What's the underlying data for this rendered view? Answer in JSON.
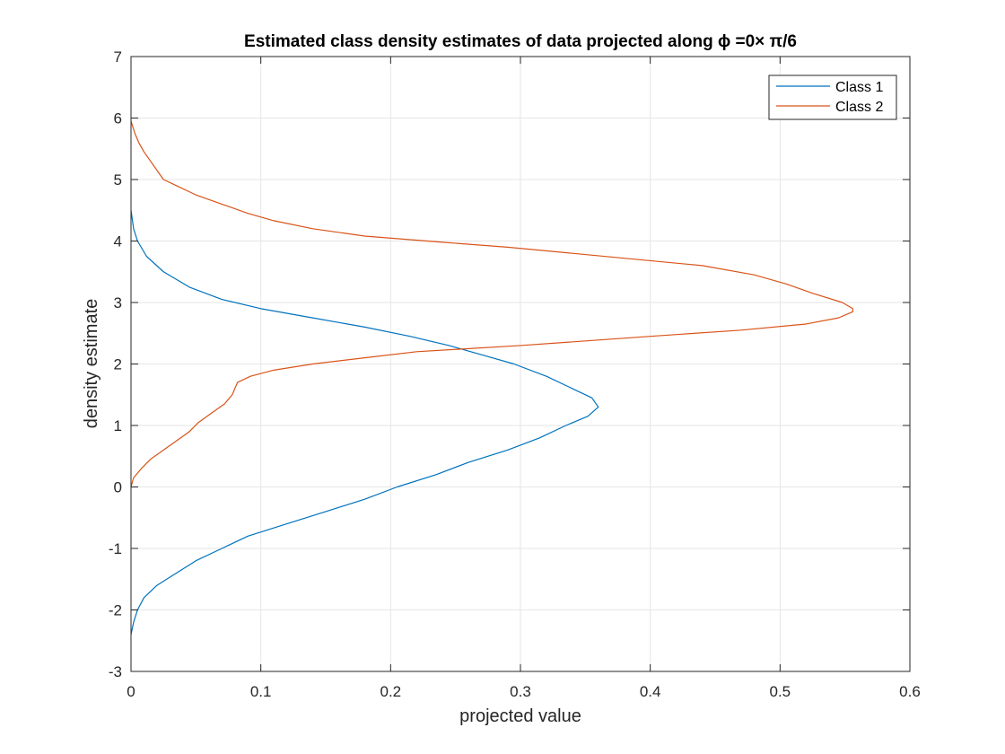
{
  "chart_data": {
    "type": "line",
    "title": "Estimated class density estimates of data projected along ϕ =0× π/6",
    "xlabel": "projected value",
    "ylabel": "density estimate",
    "xlim": [
      0,
      0.6
    ],
    "ylim": [
      -3,
      7
    ],
    "xticks": [
      0,
      0.1,
      0.2,
      0.3,
      0.4,
      0.5,
      0.6
    ],
    "xtick_labels": [
      "0",
      "0.1",
      "0.2",
      "0.3",
      "0.4",
      "0.5",
      "0.6"
    ],
    "yticks": [
      -3,
      -2,
      -1,
      0,
      1,
      2,
      3,
      4,
      5,
      6,
      7
    ],
    "ytick_labels": [
      "-3",
      "-2",
      "-1",
      "0",
      "1",
      "2",
      "3",
      "4",
      "5",
      "6",
      "7"
    ],
    "grid": true,
    "legend_position": "top-right",
    "series": [
      {
        "name": "Class 1",
        "color": "#0072BD",
        "points": [
          [
            0.0,
            -2.4
          ],
          [
            0.002,
            -2.2
          ],
          [
            0.005,
            -2.0
          ],
          [
            0.01,
            -1.8
          ],
          [
            0.02,
            -1.6
          ],
          [
            0.035,
            -1.4
          ],
          [
            0.05,
            -1.2
          ],
          [
            0.07,
            -1.0
          ],
          [
            0.09,
            -0.8
          ],
          [
            0.12,
            -0.6
          ],
          [
            0.15,
            -0.4
          ],
          [
            0.18,
            -0.2
          ],
          [
            0.205,
            0.0
          ],
          [
            0.235,
            0.2
          ],
          [
            0.26,
            0.4
          ],
          [
            0.29,
            0.6
          ],
          [
            0.315,
            0.8
          ],
          [
            0.335,
            1.0
          ],
          [
            0.352,
            1.15
          ],
          [
            0.36,
            1.3
          ],
          [
            0.355,
            1.45
          ],
          [
            0.34,
            1.6
          ],
          [
            0.32,
            1.8
          ],
          [
            0.295,
            2.0
          ],
          [
            0.27,
            2.15
          ],
          [
            0.245,
            2.3
          ],
          [
            0.215,
            2.45
          ],
          [
            0.18,
            2.6
          ],
          [
            0.14,
            2.75
          ],
          [
            0.1,
            2.9
          ],
          [
            0.07,
            3.05
          ],
          [
            0.045,
            3.25
          ],
          [
            0.025,
            3.5
          ],
          [
            0.012,
            3.75
          ],
          [
            0.005,
            4.0
          ],
          [
            0.002,
            4.2
          ],
          [
            0.0,
            4.5
          ]
        ]
      },
      {
        "name": "Class 2",
        "color": "#D95319",
        "points": [
          [
            0.0,
            0.0
          ],
          [
            0.002,
            0.15
          ],
          [
            0.008,
            0.3
          ],
          [
            0.015,
            0.45
          ],
          [
            0.025,
            0.6
          ],
          [
            0.035,
            0.75
          ],
          [
            0.045,
            0.9
          ],
          [
            0.052,
            1.05
          ],
          [
            0.062,
            1.2
          ],
          [
            0.072,
            1.35
          ],
          [
            0.078,
            1.5
          ],
          [
            0.08,
            1.6
          ],
          [
            0.082,
            1.7
          ],
          [
            0.092,
            1.8
          ],
          [
            0.11,
            1.9
          ],
          [
            0.14,
            2.0
          ],
          [
            0.18,
            2.1
          ],
          [
            0.22,
            2.2
          ],
          [
            0.3,
            2.3
          ],
          [
            0.4,
            2.45
          ],
          [
            0.47,
            2.55
          ],
          [
            0.52,
            2.65
          ],
          [
            0.545,
            2.75
          ],
          [
            0.556,
            2.85
          ],
          [
            0.556,
            2.9
          ],
          [
            0.548,
            3.0
          ],
          [
            0.525,
            3.15
          ],
          [
            0.505,
            3.3
          ],
          [
            0.48,
            3.45
          ],
          [
            0.44,
            3.6
          ],
          [
            0.39,
            3.7
          ],
          [
            0.34,
            3.8
          ],
          [
            0.29,
            3.9
          ],
          [
            0.24,
            3.98
          ],
          [
            0.18,
            4.08
          ],
          [
            0.14,
            4.2
          ],
          [
            0.11,
            4.33
          ],
          [
            0.09,
            4.45
          ],
          [
            0.07,
            4.6
          ],
          [
            0.05,
            4.75
          ],
          [
            0.035,
            4.9
          ],
          [
            0.025,
            5.0
          ],
          [
            0.02,
            5.15
          ],
          [
            0.015,
            5.3
          ],
          [
            0.01,
            5.45
          ],
          [
            0.006,
            5.6
          ],
          [
            0.003,
            5.75
          ],
          [
            0.0,
            5.95
          ]
        ]
      }
    ]
  }
}
